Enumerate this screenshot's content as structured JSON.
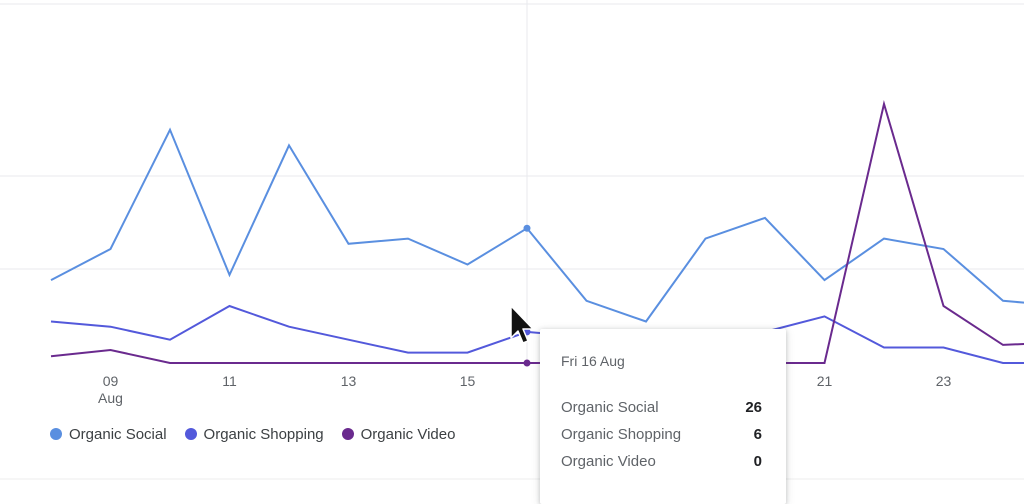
{
  "chart_data": {
    "type": "line",
    "x": [
      "08",
      "09",
      "10",
      "11",
      "12",
      "13",
      "14",
      "15",
      "16",
      "17",
      "18",
      "19",
      "20",
      "21",
      "22",
      "23",
      "24",
      "25"
    ],
    "x_tick_labels": [
      "09",
      "11",
      "13",
      "15",
      "21",
      "23"
    ],
    "x_month_label": "Aug",
    "ylim": [
      0,
      55
    ],
    "grid": true,
    "legend_position": "bottom-left",
    "series": [
      {
        "name": "Organic Social",
        "color": "#5a8fe0",
        "values": [
          16,
          22,
          45,
          17,
          42,
          23,
          24,
          19,
          26,
          12,
          8,
          24,
          28,
          16,
          24,
          22,
          12,
          11
        ]
      },
      {
        "name": "Organic Shopping",
        "color": "#5359db",
        "values": [
          8,
          7,
          4.5,
          11,
          7,
          4.5,
          2,
          2,
          6,
          5,
          5,
          5,
          6,
          9,
          3,
          3,
          0,
          0
        ]
      },
      {
        "name": "Organic Video",
        "color": "#6a2a8e",
        "values": [
          1.3,
          2.5,
          0,
          0,
          0,
          0,
          0,
          0,
          0,
          0,
          0,
          0,
          0,
          0,
          50,
          11,
          3.5,
          4
        ]
      }
    ]
  },
  "tooltip": {
    "date": "Fri 16 Aug",
    "rows": [
      {
        "name": "Organic Social",
        "value": "26"
      },
      {
        "name": "Organic Shopping",
        "value": "6"
      },
      {
        "name": "Organic Video",
        "value": "0"
      }
    ]
  }
}
